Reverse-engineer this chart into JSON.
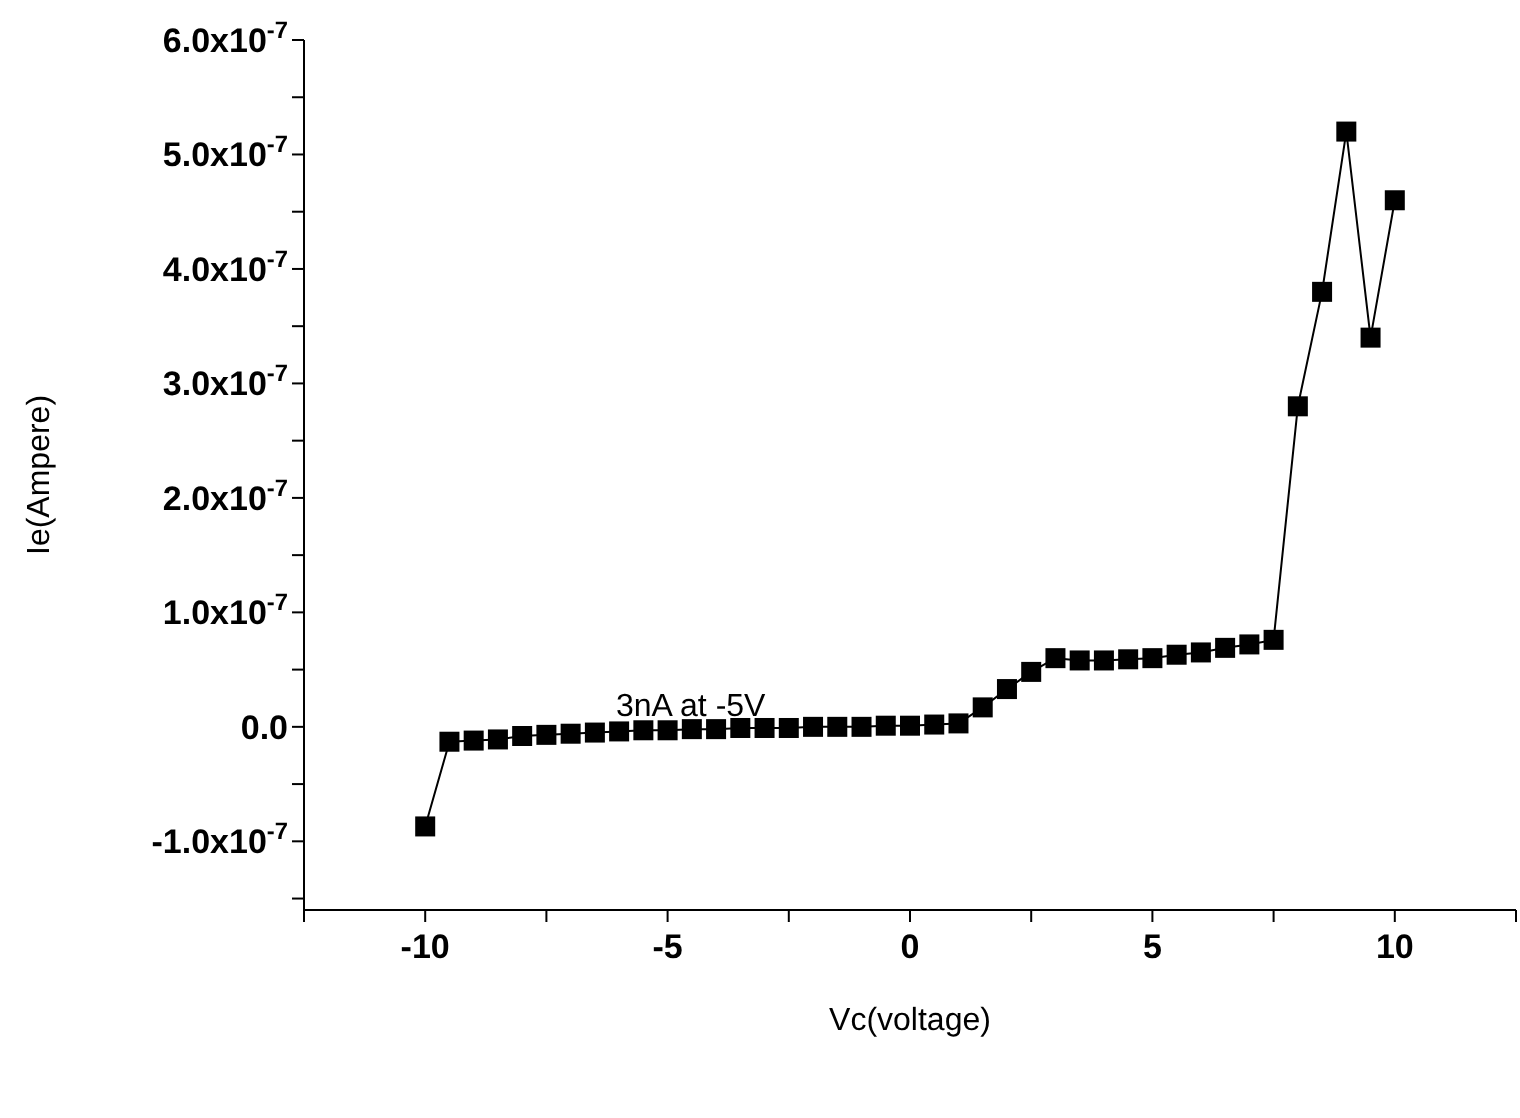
{
  "chart_data": {
    "type": "line",
    "xlabel": "Vc(voltage)",
    "ylabel": "Ie(Ampere)",
    "annotations": [
      "3nA at -5V"
    ],
    "x": [
      -10,
      -9.5,
      -9,
      -8.5,
      -8,
      -7.5,
      -7,
      -6.5,
      -6,
      -5.5,
      -5,
      -4.5,
      -4,
      -3.5,
      -3,
      -2.5,
      -2,
      -1.5,
      -1,
      -0.5,
      0,
      0.5,
      1,
      1.5,
      2,
      2.5,
      3,
      3.5,
      4,
      4.5,
      5,
      5.5,
      6,
      6.5,
      7,
      7.5,
      8,
      8.5,
      9,
      9.5,
      10
    ],
    "series": [
      {
        "color": "#000000",
        "values": [
          -8.7e-08,
          -1.3e-08,
          -1.2e-08,
          -1.1e-08,
          -8e-09,
          -7e-09,
          -6e-09,
          -5e-09,
          -4e-09,
          -3e-09,
          -3e-09,
          -2e-09,
          -2e-09,
          -1e-09,
          -1e-09,
          -1e-09,
          0,
          0,
          0,
          1e-09,
          1e-09,
          2e-09,
          3e-09,
          1.7e-08,
          3.3e-08,
          4.8e-08,
          6e-08,
          5.8e-08,
          5.8e-08,
          5.9e-08,
          6e-08,
          6.3e-08,
          6.5e-08,
          6.9e-08,
          7.2e-08,
          7.6e-08,
          2.8e-07,
          3.8e-07,
          5.2e-07,
          3.4e-07,
          4.6e-07
        ]
      }
    ],
    "xlim": [
      -12.5,
      12.5
    ],
    "xticks": [
      {
        "value": -12.5,
        "label": null
      },
      -10,
      {
        "value": -7.5,
        "label": null
      },
      -5,
      {
        "value": -2.5,
        "label": null
      },
      0,
      {
        "value": 2.5,
        "label": null
      },
      5,
      {
        "value": 7.5,
        "label": null
      },
      10,
      {
        "value": 12.5,
        "label": null
      }
    ],
    "ylim": [
      -1.6e-07,
      6e-07
    ],
    "yticks": [
      {
        "value": -1.5e-07,
        "label": null
      },
      {
        "value": -1e-07,
        "label": "-1.0x10$^{-7}$"
      },
      {
        "value": -5e-08,
        "label": null
      },
      {
        "value": 0,
        "label": "0.0"
      },
      {
        "value": 5e-08,
        "label": null
      },
      {
        "value": 1e-07,
        "label": "1.0x10$^{-7}$"
      },
      {
        "value": 1.5e-07,
        "label": null
      },
      {
        "value": 2e-07,
        "label": "2.0x10$^{-7}$"
      },
      {
        "value": 2.5e-07,
        "label": null
      },
      {
        "value": 3e-07,
        "label": "3.0x10$^{-7}$"
      },
      {
        "value": 3.5e-07,
        "label": null
      },
      {
        "value": 4e-07,
        "label": "4.0x10$^{-7}$"
      },
      {
        "value": 4.5e-07,
        "label": null
      },
      {
        "value": 5e-07,
        "label": "5.0x10$^{-7}$"
      },
      {
        "value": 5.5e-07,
        "label": null
      },
      {
        "value": 6e-07,
        "label": "6.0x10$^{-7}$"
      }
    ],
    "grid": false,
    "legend": false,
    "marker": "square",
    "line_style": "solid"
  }
}
